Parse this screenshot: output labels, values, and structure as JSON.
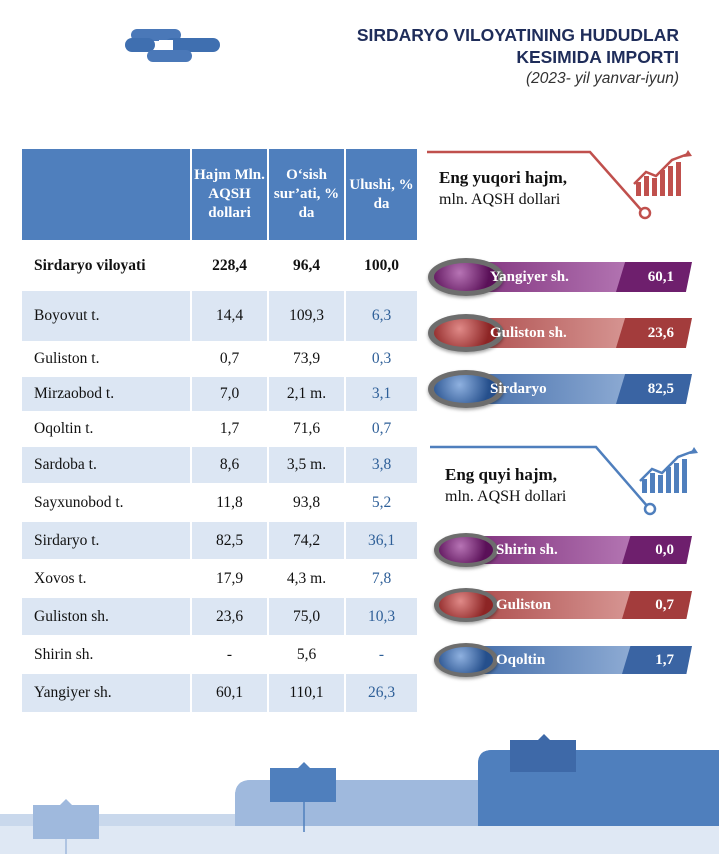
{
  "header": {
    "line1": "SIRDARYO VILOYATINING HUDUDLAR",
    "line2": "KESIMIDA IMPORTI",
    "line3": "(2023- yil yanvar-iyun)"
  },
  "table": {
    "headers": [
      "",
      "Hajm Mln. AQSH dollari",
      "O‘sish sur’ati, % da",
      "Ulushi, % da"
    ],
    "total": {
      "name": "Sirdaryo viloyati",
      "volume": "228,4",
      "growth": "96,4",
      "share": "100,0"
    },
    "rows": [
      {
        "name": "Boyovut t.",
        "volume": "14,4",
        "growth": "109,3",
        "share": "6,3"
      },
      {
        "name": "Guliston t.",
        "volume": "0,7",
        "growth": "73,9",
        "share": "0,3"
      },
      {
        "name": "Mirzaobod t.",
        "volume": "7,0",
        "growth": "2,1 m.",
        "share": "3,1"
      },
      {
        "name": "Oqoltin t.",
        "volume": "1,7",
        "growth": "71,6",
        "share": "0,7"
      },
      {
        "name": "Sardoba t.",
        "volume": "8,6",
        "growth": "3,5 m.",
        "share": "3,8"
      },
      {
        "name": "Sayxunobod t.",
        "volume": "11,8",
        "growth": "93,8",
        "share": "5,2"
      },
      {
        "name": "Sirdaryo t.",
        "volume": "82,5",
        "growth": "74,2",
        "share": "36,1"
      },
      {
        "name": "Xovos t.",
        "volume": "17,9",
        "growth": "4,3 m.",
        "share": "7,8"
      },
      {
        "name": "Guliston sh.",
        "volume": "23,6",
        "growth": "75,0",
        "share": "10,3"
      },
      {
        "name": "Shirin sh.",
        "volume": "-",
        "growth": "5,6",
        "share": "-"
      },
      {
        "name": "Yangiyer sh.",
        "volume": "60,1",
        "growth": "110,1",
        "share": "26,3"
      }
    ]
  },
  "top_panel": {
    "title": "Eng yuqori hajm,",
    "subtitle": "mln. AQSH dollari",
    "items": [
      {
        "name": "Yangiyer sh.",
        "value": "60,1",
        "color": "#6e1f6d"
      },
      {
        "name": "Guliston sh.",
        "value": "23,6",
        "color": "#a33c3c"
      },
      {
        "name": "Sirdaryo",
        "value": "82,5",
        "color": "#3a64a3"
      }
    ]
  },
  "bottom_panel": {
    "title": "Eng quyi hajm,",
    "subtitle": "mln. AQSH dollari",
    "items": [
      {
        "name": "Shirin sh.",
        "value": "0,0",
        "color": "#6e1f6d"
      },
      {
        "name": "Guliston",
        "value": "0,7",
        "color": "#a33c3c"
      },
      {
        "name": "Oqoltin",
        "value": "1,7",
        "color": "#3a64a3"
      }
    ]
  },
  "colors": {
    "accent": "#4f7fbd",
    "title": "#1f2d5a",
    "panel_top": "#c0504d",
    "panel_bottom": "#4f7fbd"
  }
}
